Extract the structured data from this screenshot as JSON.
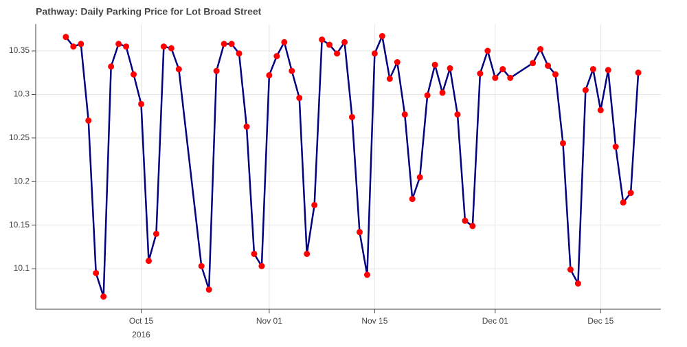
{
  "chart_data": {
    "type": "line",
    "title": "Pathway: Daily Parking Price for Lot Broad Street",
    "x": [
      "2016-10-05",
      "2016-10-06",
      "2016-10-07",
      "2016-10-08",
      "2016-10-09",
      "2016-10-10",
      "2016-10-11",
      "2016-10-12",
      "2016-10-13",
      "2016-10-14",
      "2016-10-15",
      "2016-10-16",
      "2016-10-17",
      "2016-10-18",
      "2016-10-19",
      "2016-10-20",
      "2016-10-23",
      "2016-10-24",
      "2016-10-25",
      "2016-10-26",
      "2016-10-27",
      "2016-10-28",
      "2016-10-29",
      "2016-10-30",
      "2016-10-31",
      "2016-11-01",
      "2016-11-02",
      "2016-11-03",
      "2016-11-04",
      "2016-11-05",
      "2016-11-06",
      "2016-11-07",
      "2016-11-08",
      "2016-11-09",
      "2016-11-10",
      "2016-11-11",
      "2016-11-12",
      "2016-11-13",
      "2016-11-14",
      "2016-11-15",
      "2016-11-16",
      "2016-11-17",
      "2016-11-18",
      "2016-11-19",
      "2016-11-20",
      "2016-11-21",
      "2016-11-22",
      "2016-11-23",
      "2016-11-24",
      "2016-11-25",
      "2016-11-26",
      "2016-11-27",
      "2016-11-28",
      "2016-11-29",
      "2016-11-30",
      "2016-12-01",
      "2016-12-02",
      "2016-12-03",
      "2016-12-06",
      "2016-12-07",
      "2016-12-08",
      "2016-12-09",
      "2016-12-10",
      "2016-12-11",
      "2016-12-12",
      "2016-12-13",
      "2016-12-14",
      "2016-12-15",
      "2016-12-16",
      "2016-12-17",
      "2016-12-18",
      "2016-12-19",
      "2016-12-20"
    ],
    "series": [
      {
        "color": "#000080",
        "marker_color": "#ff0000",
        "values": [
          10.366,
          10.355,
          10.358,
          10.27,
          10.095,
          10.068,
          10.332,
          10.358,
          10.355,
          10.323,
          10.289,
          10.109,
          10.14,
          10.355,
          10.353,
          10.329,
          10.103,
          10.076,
          10.327,
          10.358,
          10.358,
          10.347,
          10.263,
          10.117,
          10.103,
          10.322,
          10.344,
          10.36,
          10.327,
          10.296,
          10.117,
          10.173,
          10.363,
          10.357,
          10.347,
          10.36,
          10.274,
          10.142,
          10.093,
          10.347,
          10.367,
          10.318,
          10.337,
          10.277,
          10.18,
          10.205,
          10.299,
          10.334,
          10.302,
          10.33,
          10.277,
          10.155,
          10.149,
          10.324,
          10.35,
          10.319,
          10.329,
          10.319,
          10.336,
          10.352,
          10.333,
          10.323,
          10.244,
          10.099,
          10.083,
          10.305,
          10.329,
          10.282,
          10.328,
          10.24,
          10.176,
          10.187,
          10.325
        ]
      }
    ],
    "xlim": [
      "2016-10-01",
      "2016-12-23"
    ],
    "xticks": [
      {
        "value": "2016-10-15",
        "label": "Oct 15",
        "year": "2016"
      },
      {
        "value": "2016-11-01",
        "label": "Nov 01"
      },
      {
        "value": "2016-11-15",
        "label": "Nov 15"
      },
      {
        "value": "2016-12-01",
        "label": "Dec 01"
      },
      {
        "value": "2016-12-15",
        "label": "Dec 15"
      }
    ],
    "ylim": [
      10.0535,
      10.3808
    ],
    "yticks": [
      10.1,
      10.15,
      10.2,
      10.25,
      10.3,
      10.35
    ],
    "grid": true
  }
}
